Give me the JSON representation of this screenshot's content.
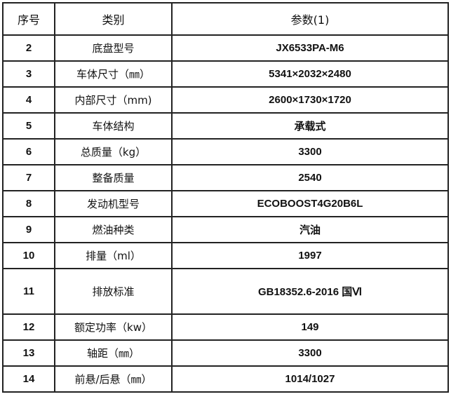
{
  "table": {
    "headers": [
      "序号",
      "类别",
      "参数(1)"
    ],
    "rows": [
      {
        "no": "2",
        "category": "底盘型号",
        "value": "JX6533PA-M6"
      },
      {
        "no": "3",
        "category": "车体尺寸（㎜）",
        "value": "5341×2032×2480"
      },
      {
        "no": "4",
        "category": "内部尺寸（mm)",
        "value": "2600×1730×1720"
      },
      {
        "no": "5",
        "category": "车体结构",
        "value": "承载式"
      },
      {
        "no": "6",
        "category": "总质量（kg）",
        "value": "3300"
      },
      {
        "no": "7",
        "category": "整备质量",
        "value": "2540"
      },
      {
        "no": "8",
        "category": "发动机型号",
        "value": "ECOBOOST4G20B6L"
      },
      {
        "no": "9",
        "category": "燃油种类",
        "value": "汽油"
      },
      {
        "no": "10",
        "category": "排量（ml）",
        "value": "1997"
      },
      {
        "no": "11",
        "category": "排放标准",
        "value": "GB18352.6-2016 国Ⅵ"
      },
      {
        "no": "12",
        "category": "额定功率（kw）",
        "value": "149"
      },
      {
        "no": "13",
        "category": "轴距（㎜）",
        "value": "3300"
      },
      {
        "no": "14",
        "category": "前悬/后悬（㎜）",
        "value": "1014/1027"
      }
    ]
  }
}
